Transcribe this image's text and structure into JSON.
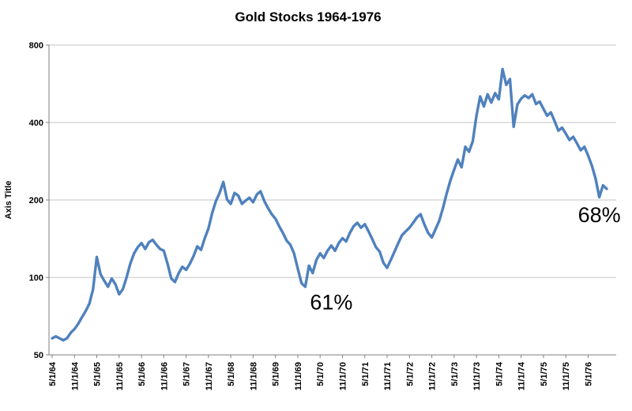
{
  "chart_data": {
    "type": "line",
    "title": "Gold Stocks 1964-1976",
    "ylabel": "Axis Title",
    "xlabel": "",
    "y_scale": "log",
    "ylim": [
      50,
      800
    ],
    "y_ticks": [
      50,
      100,
      200,
      400,
      800
    ],
    "grid": true,
    "legend": "none",
    "x_start": "5/1/64",
    "x_tick_step": 6,
    "x_tick_labels": [
      "5/1/64",
      "11/1/64",
      "5/1/65",
      "11/1/65",
      "5/1/66",
      "11/1/66",
      "5/1/67",
      "11/1/67",
      "5/1/68",
      "11/1/68",
      "5/1/69",
      "11/1/69",
      "5/1/70",
      "11/1/70",
      "5/1/71",
      "11/1/71",
      "5/1/72",
      "11/1/72",
      "5/1/73",
      "11/1/73",
      "5/1/74",
      "11/1/74",
      "5/1/75",
      "11/1/75",
      "5/1/76"
    ],
    "series": [
      {
        "name": "Gold Stocks",
        "color": "#4F81BD",
        "values": [
          58,
          59,
          58,
          57,
          58,
          61,
          63,
          66,
          70,
          74,
          79,
          90,
          120,
          103,
          97,
          92,
          99,
          94,
          86,
          90,
          100,
          113,
          124,
          131,
          136,
          129,
          137,
          140,
          134,
          129,
          127,
          113,
          99,
          96,
          104,
          110,
          107,
          113,
          121,
          132,
          128,
          142,
          155,
          178,
          198,
          213,
          235,
          201,
          193,
          213,
          208,
          193,
          199,
          204,
          196,
          210,
          216,
          198,
          186,
          176,
          169,
          158,
          149,
          139,
          134,
          124,
          108,
          95,
          92,
          111,
          104,
          117,
          124,
          119,
          127,
          133,
          127,
          136,
          142,
          138,
          149,
          158,
          163,
          156,
          161,
          151,
          141,
          131,
          126,
          114,
          109,
          117,
          126,
          136,
          146,
          151,
          156,
          163,
          171,
          176,
          161,
          149,
          143,
          154,
          166,
          186,
          212,
          238,
          262,
          287,
          268,
          322,
          308,
          338,
          425,
          505,
          462,
          515,
          478,
          520,
          492,
          645,
          560,
          590,
          385,
          470,
          495,
          510,
          498,
          515,
          472,
          482,
          452,
          425,
          438,
          405,
          372,
          382,
          362,
          342,
          352,
          332,
          312,
          322,
          298,
          272,
          242,
          205,
          228,
          221
        ]
      }
    ],
    "annotations": [
      {
        "label": "61%",
        "x_index": 75,
        "value": 80
      },
      {
        "label": "68%",
        "x_index": 147,
        "value": 175
      }
    ]
  },
  "colors": {
    "line": "#4F81BD",
    "grid": "#C6C6C6",
    "axis": "#808080",
    "text": "#000000",
    "background": "#FFFFFF"
  }
}
